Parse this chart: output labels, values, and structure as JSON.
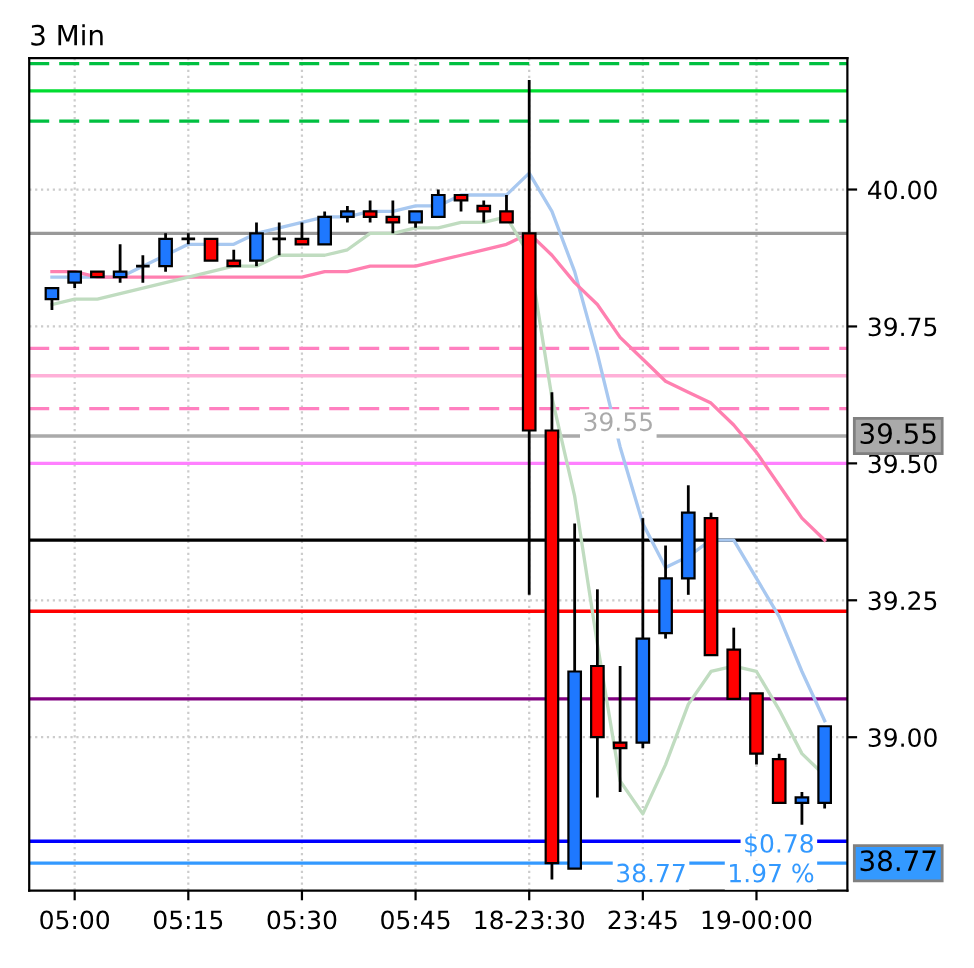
{
  "chart_data": {
    "type": "candlestick",
    "title": "3 Min",
    "categories": [
      null,
      "05:00",
      null,
      null,
      null,
      null,
      "05:15",
      null,
      null,
      null,
      null,
      "05:30",
      null,
      null,
      null,
      null,
      "05:45",
      null,
      null,
      null,
      null,
      "18-23:30",
      null,
      null,
      null,
      null,
      "23:45",
      null,
      null,
      null,
      null,
      "19-00:00",
      null,
      null,
      null
    ],
    "ohlc": [
      [
        39.8,
        39.82,
        39.78,
        39.82
      ],
      [
        39.83,
        39.85,
        39.82,
        39.85
      ],
      [
        39.85,
        39.85,
        39.84,
        39.84
      ],
      [
        39.84,
        39.9,
        39.83,
        39.85
      ],
      [
        39.86,
        39.88,
        39.83,
        39.86
      ],
      [
        39.86,
        39.92,
        39.85,
        39.91
      ],
      [
        39.91,
        39.92,
        39.9,
        39.91
      ],
      [
        39.91,
        39.91,
        39.87,
        39.87
      ],
      [
        39.87,
        39.89,
        39.86,
        39.86
      ],
      [
        39.87,
        39.94,
        39.86,
        39.92
      ],
      [
        39.91,
        39.94,
        39.88,
        39.91
      ],
      [
        39.91,
        39.94,
        39.9,
        39.9
      ],
      [
        39.9,
        39.96,
        39.9,
        39.95
      ],
      [
        39.95,
        39.97,
        39.94,
        39.96
      ],
      [
        39.96,
        39.98,
        39.94,
        39.95
      ],
      [
        39.95,
        39.98,
        39.92,
        39.94
      ],
      [
        39.94,
        39.96,
        39.93,
        39.96
      ],
      [
        39.95,
        40.0,
        39.95,
        39.99
      ],
      [
        39.99,
        39.99,
        39.96,
        39.98
      ],
      [
        39.97,
        39.98,
        39.94,
        39.96
      ],
      [
        39.96,
        39.99,
        39.94,
        39.94
      ],
      [
        39.92,
        40.2,
        39.26,
        39.56
      ],
      [
        39.56,
        39.63,
        38.74,
        38.77
      ],
      [
        38.76,
        39.39,
        38.76,
        39.12
      ],
      [
        39.13,
        39.27,
        38.89,
        39.0
      ],
      [
        38.99,
        39.13,
        38.9,
        38.98
      ],
      [
        38.99,
        39.4,
        38.98,
        39.18
      ],
      [
        39.19,
        39.35,
        39.18,
        39.29
      ],
      [
        39.29,
        39.46,
        39.26,
        39.41
      ],
      [
        39.4,
        39.41,
        39.15,
        39.15
      ],
      [
        39.16,
        39.2,
        39.07,
        39.07
      ],
      [
        39.08,
        39.08,
        38.95,
        38.97
      ],
      [
        38.96,
        38.97,
        38.88,
        38.88
      ],
      [
        38.88,
        38.9,
        38.84,
        38.89
      ],
      [
        38.88,
        39.02,
        38.87,
        39.02
      ]
    ],
    "colors": [
      "#1e78ff",
      "#1e78ff",
      "#ff0000",
      "#1e78ff",
      "#000000",
      "#1e78ff",
      "#000000",
      "#ff0000",
      "#ff0000",
      "#1e78ff",
      "#000000",
      "#ff0000",
      "#1e78ff",
      "#1e78ff",
      "#ff0000",
      "#ff0000",
      "#1e78ff",
      "#1e78ff",
      "#ff0000",
      "#ff0000",
      "#ff0000",
      "#ff0000",
      "#ff0000",
      "#1e78ff",
      "#ff0000",
      "#ff0000",
      "#1e78ff",
      "#1e78ff",
      "#1e78ff",
      "#ff0000",
      "#ff0000",
      "#ff0000",
      "#ff0000",
      "#1e78ff",
      "#1e78ff"
    ],
    "series": [
      {
        "type": "line",
        "color": "#a8c8f0",
        "values": [
          39.84,
          39.84,
          39.84,
          39.84,
          39.86,
          39.88,
          39.9,
          39.9,
          39.9,
          39.92,
          39.93,
          39.94,
          39.95,
          39.95,
          39.96,
          39.96,
          39.97,
          39.97,
          39.99,
          39.99,
          39.99,
          40.03,
          39.96,
          39.85,
          39.7,
          39.53,
          39.39,
          39.31,
          39.33,
          39.36,
          39.36,
          39.29,
          39.22,
          39.12,
          39.03
        ]
      },
      {
        "type": "line",
        "color": "#ff80b0",
        "values": [
          39.85,
          39.85,
          39.84,
          39.84,
          39.84,
          39.84,
          39.84,
          39.84,
          39.84,
          39.84,
          39.84,
          39.84,
          39.85,
          39.85,
          39.86,
          39.86,
          39.86,
          39.87,
          39.88,
          39.89,
          39.9,
          39.92,
          39.88,
          39.83,
          39.79,
          39.73,
          39.69,
          39.65,
          39.63,
          39.61,
          39.57,
          39.52,
          39.46,
          39.4,
          39.36
        ]
      },
      {
        "type": "line",
        "color": "#c0dcc0",
        "values": [
          39.79,
          39.8,
          39.8,
          39.81,
          39.82,
          39.83,
          39.84,
          39.85,
          39.86,
          39.86,
          39.88,
          39.88,
          39.88,
          39.89,
          39.92,
          39.92,
          39.93,
          39.93,
          39.94,
          39.94,
          39.95,
          39.88,
          39.62,
          39.44,
          39.17,
          38.92,
          38.86,
          38.95,
          39.06,
          39.12,
          39.13,
          39.12,
          39.05,
          38.97,
          38.93
        ]
      }
    ],
    "ylim": [
      38.72,
      40.24
    ],
    "yticks": [
      {
        "value": 39.0,
        "label": "39.00"
      },
      {
        "value": 39.25,
        "label": "39.25"
      },
      {
        "value": 39.5,
        "label": "39.50"
      },
      {
        "value": 39.75,
        "label": "39.75"
      },
      {
        "value": 40.0,
        "label": "40.00"
      }
    ],
    "ref_lines": [
      {
        "axis": "y",
        "value": 40.23,
        "color": "#00c040",
        "line_style": "dashed"
      },
      {
        "axis": "y",
        "value": 40.18,
        "color": "#00dd30"
      },
      {
        "axis": "y",
        "value": 40.125,
        "color": "#00c040",
        "line_style": "dashed"
      },
      {
        "axis": "y",
        "value": 39.92,
        "color": "#999999"
      },
      {
        "axis": "y",
        "value": 39.71,
        "color": "#ff80c0",
        "line_style": "dashed"
      },
      {
        "axis": "y",
        "value": 39.66,
        "color": "#ffb0d8"
      },
      {
        "axis": "y",
        "value": 39.6,
        "color": "#ff80c0",
        "line_style": "dashed"
      },
      {
        "axis": "y",
        "value": 39.55,
        "color": "#aaaaaa",
        "label": "39.55"
      },
      {
        "axis": "y",
        "value": 39.5,
        "color": "#ff80ff"
      },
      {
        "axis": "y",
        "value": 39.36,
        "color": "#000000"
      },
      {
        "axis": "y",
        "value": 39.23,
        "color": "#ff0000"
      },
      {
        "axis": "y",
        "value": 39.07,
        "color": "#800080"
      },
      {
        "axis": "y",
        "value": 38.81,
        "color": "#0000ff"
      },
      {
        "axis": "y",
        "value": 38.77,
        "color": "#3399ff",
        "label": "38.77"
      }
    ],
    "annotations": [
      {
        "text": "39.55",
        "y": 39.55
      },
      {
        "text": "38.77",
        "y": 38.77
      },
      {
        "text": "$0.78",
        "y": 38.78
      },
      {
        "text": "1.97 %",
        "y": 38.77
      }
    ],
    "grid": true,
    "legend": false
  }
}
